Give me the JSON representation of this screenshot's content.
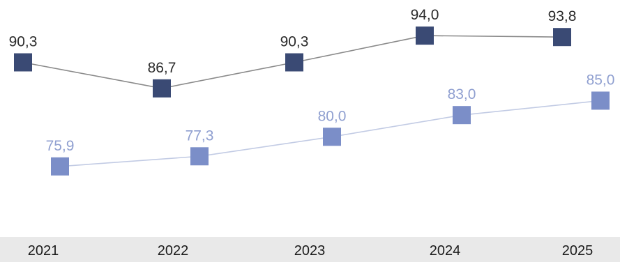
{
  "chart_data": {
    "type": "line",
    "title": "",
    "xlabel": "",
    "ylabel": "",
    "categories": [
      "2021",
      "2022",
      "2023",
      "2024",
      "2025"
    ],
    "ylim": [
      70,
      97
    ],
    "grid": false,
    "legend": "none",
    "series": [
      {
        "values": [
          90.3,
          86.7,
          90.3,
          94.0,
          93.8
        ],
        "labels": [
          "90,3",
          "86,7",
          "90,3",
          "94,0",
          "93,8"
        ],
        "color": "#3a4a74",
        "line_color": "#8a8a8a",
        "label_color": "#2b2b2b",
        "marker": "square"
      },
      {
        "values": [
          75.9,
          77.3,
          80.0,
          83.0,
          85.0
        ],
        "labels": [
          "75,9",
          "77,3",
          "80,0",
          "83,0",
          "85,0"
        ],
        "color": "#7b8ec8",
        "line_color": "#c2cbe4",
        "label_color": "#8f9fd0",
        "marker": "square"
      }
    ]
  }
}
